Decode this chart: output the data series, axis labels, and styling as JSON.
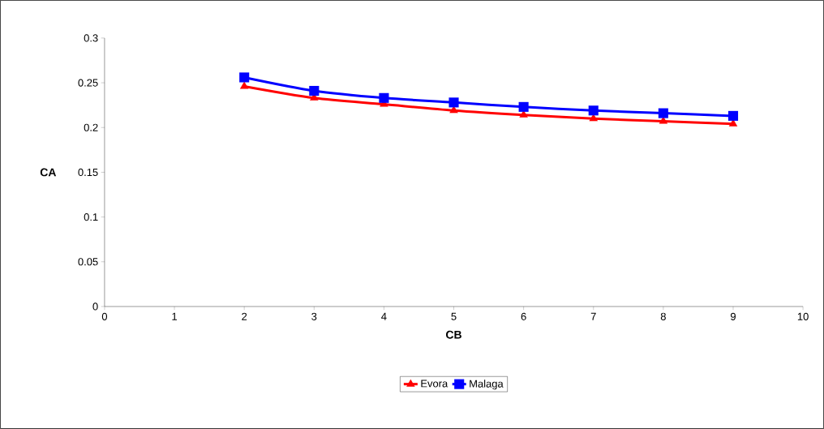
{
  "chart_data": {
    "type": "line",
    "xlabel": "CB",
    "ylabel": "CA",
    "xlim": [
      0,
      10
    ],
    "ylim": [
      0,
      0.3
    ],
    "xticks": [
      0,
      1,
      2,
      3,
      4,
      5,
      6,
      7,
      8,
      9,
      10
    ],
    "yticks": [
      0,
      0.05,
      0.1,
      0.15,
      0.2,
      0.25,
      0.3
    ],
    "legend": "bottom",
    "grid": false,
    "series": [
      {
        "name": "Evora",
        "color": "#ff0000",
        "marker": "triangle",
        "x": [
          2,
          3,
          4,
          5,
          6,
          7,
          8,
          9
        ],
        "values": [
          0.246,
          0.233,
          0.226,
          0.219,
          0.214,
          0.21,
          0.207,
          0.204
        ]
      },
      {
        "name": "Malaga",
        "color": "#0000ff",
        "marker": "square",
        "x": [
          2,
          3,
          4,
          5,
          6,
          7,
          8,
          9
        ],
        "values": [
          0.256,
          0.241,
          0.233,
          0.228,
          0.223,
          0.219,
          0.216,
          0.213
        ]
      }
    ]
  }
}
